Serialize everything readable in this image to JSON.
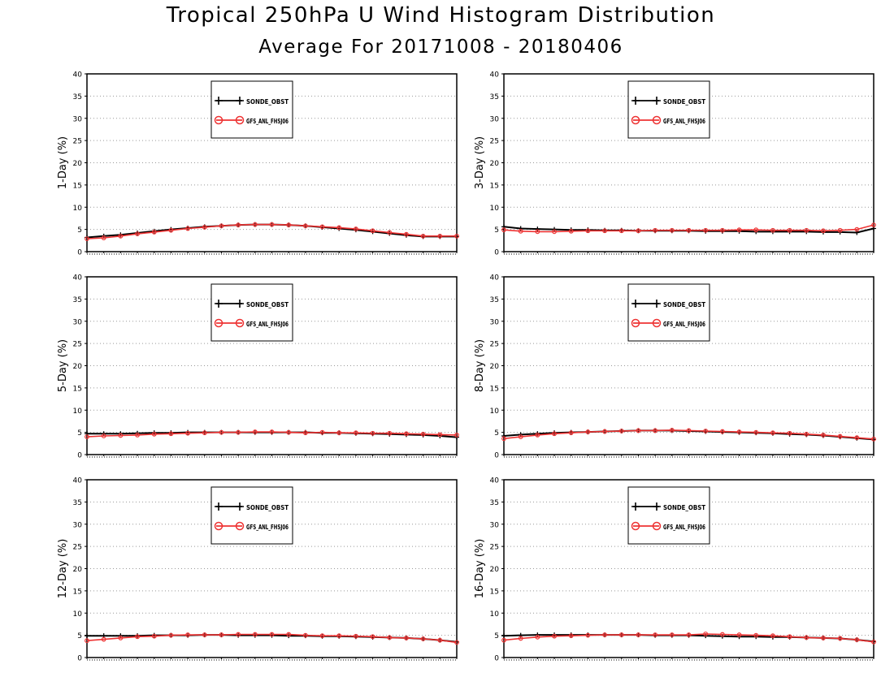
{
  "title": "Tropical 250hPa U Wind Histogram Distribution",
  "subtitle": "Average For 20171008 - 20180406",
  "colors": {
    "series_a": "#000000",
    "series_b": "#ee3333",
    "grid": "#999999"
  },
  "chart_data": [
    {
      "type": "line",
      "ylabel": "1-Day (%)",
      "ylim": [
        0,
        40
      ],
      "yticks": [
        0,
        5,
        10,
        15,
        20,
        25,
        30,
        35,
        40
      ],
      "grid": true,
      "legend_position": "top-center",
      "legend": [
        "SONDE_OBST",
        "GFS_ANL_FHSJ06"
      ],
      "x": [
        0,
        1,
        2,
        3,
        4,
        5,
        6,
        7,
        8,
        9,
        10,
        11,
        12,
        13,
        14,
        15,
        16,
        17,
        18,
        19,
        20,
        21,
        22
      ],
      "series": [
        {
          "name": "SONDE_OBST",
          "marker": "plus",
          "values": [
            3.2,
            3.5,
            3.8,
            4.2,
            4.6,
            5.0,
            5.3,
            5.6,
            5.8,
            6.0,
            6.1,
            6.1,
            6.0,
            5.8,
            5.5,
            5.2,
            4.9,
            4.5,
            4.1,
            3.7,
            3.4,
            3.4,
            3.4
          ]
        },
        {
          "name": "GFS_ANL_FHSJ06",
          "marker": "circle",
          "values": [
            2.9,
            3.1,
            3.5,
            4.0,
            4.4,
            4.8,
            5.2,
            5.5,
            5.8,
            6.0,
            6.1,
            6.1,
            6.0,
            5.8,
            5.6,
            5.4,
            5.1,
            4.7,
            4.3,
            3.9,
            3.5,
            3.5,
            3.5
          ]
        }
      ]
    },
    {
      "type": "line",
      "ylabel": "3-Day (%)",
      "ylim": [
        0,
        40
      ],
      "yticks": [
        0,
        5,
        10,
        15,
        20,
        25,
        30,
        35,
        40
      ],
      "grid": true,
      "legend_position": "top-center",
      "legend": [
        "SONDE_OBST",
        "GFS_ANL_FHSJ06"
      ],
      "x": [
        0,
        1,
        2,
        3,
        4,
        5,
        6,
        7,
        8,
        9,
        10,
        11,
        12,
        13,
        14,
        15,
        16,
        17,
        18,
        19,
        20,
        21,
        22
      ],
      "series": [
        {
          "name": "SONDE_OBST",
          "marker": "plus",
          "values": [
            5.6,
            5.2,
            5.1,
            5.0,
            4.9,
            4.9,
            4.8,
            4.8,
            4.7,
            4.7,
            4.7,
            4.7,
            4.6,
            4.6,
            4.6,
            4.5,
            4.5,
            4.5,
            4.5,
            4.4,
            4.4,
            4.3,
            5.2
          ]
        },
        {
          "name": "GFS_ANL_FHSJ06",
          "marker": "circle",
          "values": [
            4.9,
            4.6,
            4.5,
            4.5,
            4.6,
            4.7,
            4.7,
            4.7,
            4.7,
            4.8,
            4.8,
            4.8,
            4.8,
            4.8,
            4.9,
            4.9,
            4.8,
            4.8,
            4.8,
            4.7,
            4.8,
            5.0,
            6.0
          ]
        }
      ]
    },
    {
      "type": "line",
      "ylabel": "5-Day (%)",
      "ylim": [
        0,
        40
      ],
      "yticks": [
        0,
        5,
        10,
        15,
        20,
        25,
        30,
        35,
        40
      ],
      "grid": true,
      "legend_position": "top-center",
      "legend": [
        "SONDE_OBST",
        "GFS_ANL_FHSJ06"
      ],
      "x": [
        0,
        1,
        2,
        3,
        4,
        5,
        6,
        7,
        8,
        9,
        10,
        11,
        12,
        13,
        14,
        15,
        16,
        17,
        18,
        19,
        20,
        21,
        22
      ],
      "series": [
        {
          "name": "SONDE_OBST",
          "marker": "plus",
          "values": [
            4.7,
            4.7,
            4.7,
            4.8,
            4.9,
            4.9,
            5.0,
            5.0,
            5.0,
            5.0,
            5.0,
            5.0,
            5.0,
            5.0,
            4.9,
            4.9,
            4.8,
            4.7,
            4.6,
            4.5,
            4.4,
            4.2,
            3.9
          ]
        },
        {
          "name": "GFS_ANL_FHSJ06",
          "marker": "circle",
          "values": [
            4.0,
            4.2,
            4.3,
            4.4,
            4.6,
            4.7,
            4.8,
            4.9,
            5.0,
            5.0,
            5.1,
            5.1,
            5.0,
            4.9,
            5.0,
            4.9,
            4.9,
            4.8,
            4.8,
            4.7,
            4.6,
            4.5,
            4.4
          ]
        }
      ]
    },
    {
      "type": "line",
      "ylabel": "8-Day (%)",
      "ylim": [
        0,
        40
      ],
      "yticks": [
        0,
        5,
        10,
        15,
        20,
        25,
        30,
        35,
        40
      ],
      "grid": true,
      "legend_position": "top-center",
      "legend": [
        "SONDE_OBST",
        "GFS_ANL_FHSJ06"
      ],
      "x": [
        0,
        1,
        2,
        3,
        4,
        5,
        6,
        7,
        8,
        9,
        10,
        11,
        12,
        13,
        14,
        15,
        16,
        17,
        18,
        19,
        20,
        21,
        22
      ],
      "series": [
        {
          "name": "SONDE_OBST",
          "marker": "plus",
          "values": [
            4.2,
            4.5,
            4.7,
            4.9,
            5.0,
            5.1,
            5.2,
            5.3,
            5.4,
            5.4,
            5.4,
            5.3,
            5.2,
            5.1,
            5.0,
            4.9,
            4.8,
            4.6,
            4.5,
            4.3,
            4.0,
            3.7,
            3.4
          ]
        },
        {
          "name": "GFS_ANL_FHSJ06",
          "marker": "circle",
          "values": [
            3.6,
            4.0,
            4.4,
            4.7,
            4.9,
            5.1,
            5.2,
            5.3,
            5.4,
            5.4,
            5.5,
            5.4,
            5.3,
            5.2,
            5.1,
            5.0,
            4.9,
            4.8,
            4.6,
            4.4,
            4.1,
            3.8,
            3.5
          ]
        }
      ]
    },
    {
      "type": "line",
      "ylabel": "12-Day (%)",
      "ylim": [
        0,
        40
      ],
      "yticks": [
        0,
        5,
        10,
        15,
        20,
        25,
        30,
        35,
        40
      ],
      "grid": true,
      "legend_position": "top-center",
      "legend": [
        "SONDE_OBST",
        "GFS_ANL_FHSJ06"
      ],
      "x": [
        0,
        1,
        2,
        3,
        4,
        5,
        6,
        7,
        8,
        9,
        10,
        11,
        12,
        13,
        14,
        15,
        16,
        17,
        18,
        19,
        20,
        21,
        22
      ],
      "series": [
        {
          "name": "SONDE_OBST",
          "marker": "plus",
          "values": [
            4.9,
            4.9,
            4.9,
            4.9,
            5.0,
            5.0,
            5.0,
            5.1,
            5.1,
            5.0,
            5.0,
            5.0,
            4.9,
            4.9,
            4.8,
            4.8,
            4.7,
            4.6,
            4.5,
            4.4,
            4.2,
            3.9,
            3.5
          ]
        },
        {
          "name": "GFS_ANL_FHSJ06",
          "marker": "circle",
          "values": [
            3.8,
            4.1,
            4.4,
            4.7,
            4.8,
            5.0,
            5.1,
            5.1,
            5.1,
            5.2,
            5.2,
            5.2,
            5.2,
            5.0,
            4.9,
            4.9,
            4.8,
            4.7,
            4.5,
            4.4,
            4.2,
            3.9,
            3.4
          ]
        }
      ]
    },
    {
      "type": "line",
      "ylabel": "16-Day (%)",
      "ylim": [
        0,
        40
      ],
      "yticks": [
        0,
        5,
        10,
        15,
        20,
        25,
        30,
        35,
        40
      ],
      "grid": true,
      "legend_position": "top-center",
      "legend": [
        "SONDE_OBST",
        "GFS_ANL_FHSJ06"
      ],
      "x": [
        0,
        1,
        2,
        3,
        4,
        5,
        6,
        7,
        8,
        9,
        10,
        11,
        12,
        13,
        14,
        15,
        16,
        17,
        18,
        19,
        20,
        21,
        22
      ],
      "series": [
        {
          "name": "SONDE_OBST",
          "marker": "plus",
          "values": [
            4.9,
            5.0,
            5.1,
            5.1,
            5.1,
            5.1,
            5.1,
            5.1,
            5.1,
            5.0,
            5.0,
            5.0,
            4.9,
            4.8,
            4.7,
            4.7,
            4.6,
            4.6,
            4.5,
            4.4,
            4.3,
            4.0,
            3.6
          ]
        },
        {
          "name": "GFS_ANL_FHSJ06",
          "marker": "circle",
          "values": [
            3.9,
            4.3,
            4.6,
            4.8,
            4.9,
            5.0,
            5.1,
            5.1,
            5.1,
            5.1,
            5.1,
            5.1,
            5.3,
            5.2,
            5.1,
            5.0,
            4.9,
            4.7,
            4.5,
            4.4,
            4.3,
            4.0,
            3.5
          ]
        }
      ]
    }
  ]
}
